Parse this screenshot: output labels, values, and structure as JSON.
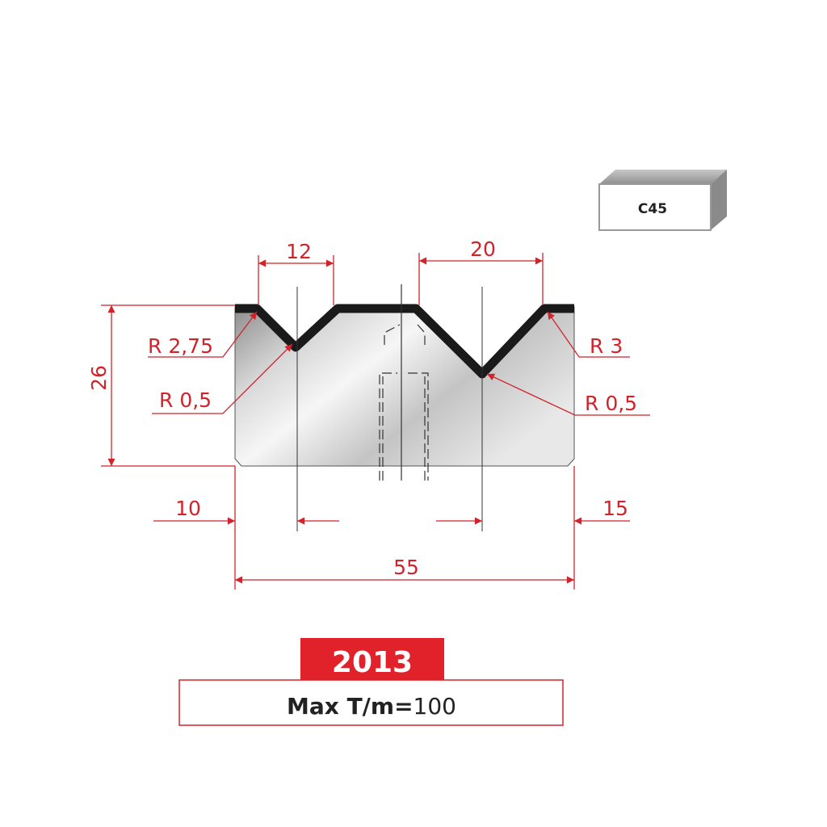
{
  "material": "C45",
  "dimensions": {
    "top_left_v_opening": "12",
    "top_right_v_opening": "20",
    "height": "26",
    "left_offset": "10",
    "right_offset": "15",
    "total_width": "55"
  },
  "radii": {
    "left_shoulder": "R 2,75",
    "left_bottom": "R 0,5",
    "right_shoulder": "R 3",
    "right_bottom": "R 0,5"
  },
  "product": {
    "code": "2013",
    "max_label": "Max T/m=",
    "max_value": "100"
  },
  "colors": {
    "accent": "#d2232a",
    "profile": "#1a1a1a"
  }
}
